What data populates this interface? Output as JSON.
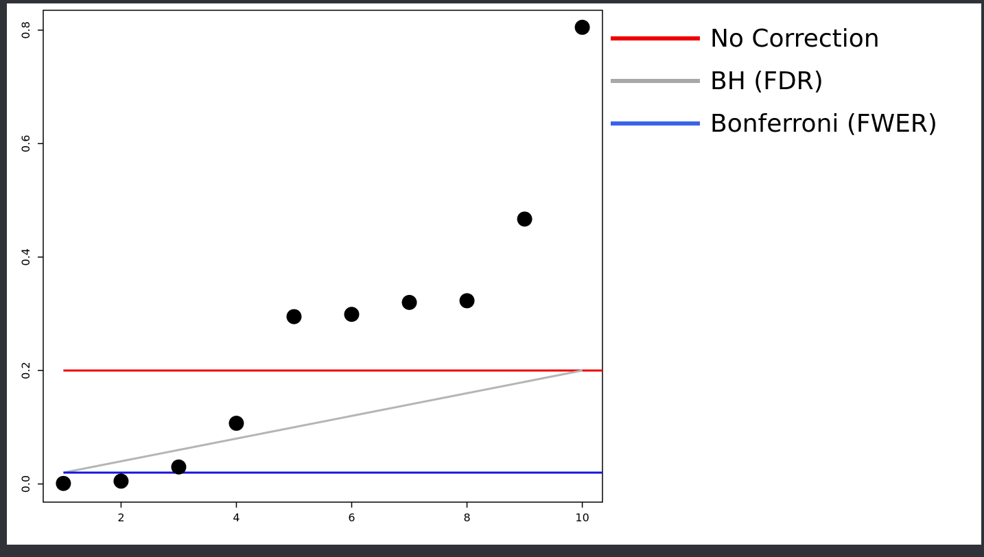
{
  "chart_data": {
    "type": "scatter",
    "title": "",
    "xlabel": "",
    "ylabel": "",
    "xlim": [
      0.65,
      10.35
    ],
    "ylim": [
      -0.032,
      0.835
    ],
    "x_ticks": [
      2,
      4,
      6,
      8,
      10
    ],
    "y_ticks": [
      0.0,
      0.2,
      0.4,
      0.6,
      0.8
    ],
    "x_tick_labels": [
      "2",
      "4",
      "6",
      "8",
      "10"
    ],
    "y_tick_labels": [
      "0.0",
      "0.2",
      "0.4",
      "0.6",
      "0.8"
    ],
    "grid": false,
    "legend_position": "outside-right-top",
    "points": {
      "x": [
        1,
        2,
        3,
        4,
        5,
        6,
        7,
        8,
        9,
        10
      ],
      "y": [
        0.001,
        0.005,
        0.03,
        0.107,
        0.295,
        0.299,
        0.32,
        0.323,
        0.467,
        0.805
      ],
      "color": "#000000"
    },
    "lines": [
      {
        "name": "No Correction",
        "x": [
          1,
          10.35
        ],
        "y": [
          0.2,
          0.2
        ],
        "color": "#ee0000"
      },
      {
        "name": "BH (FDR)",
        "x": [
          1,
          10
        ],
        "y": [
          0.02,
          0.2
        ],
        "color": "#b5b5b5"
      },
      {
        "name": "Bonferroni (FWER)",
        "x": [
          1,
          10.35
        ],
        "y": [
          0.02,
          0.02
        ],
        "color": "#1515dd"
      }
    ],
    "legend": [
      {
        "label": "No Correction",
        "color": "#ee0000"
      },
      {
        "label": "BH (FDR)",
        "color": "#a8a8a8"
      },
      {
        "label": "Bonferroni (FWER)",
        "color": "#3a63e8"
      }
    ]
  }
}
